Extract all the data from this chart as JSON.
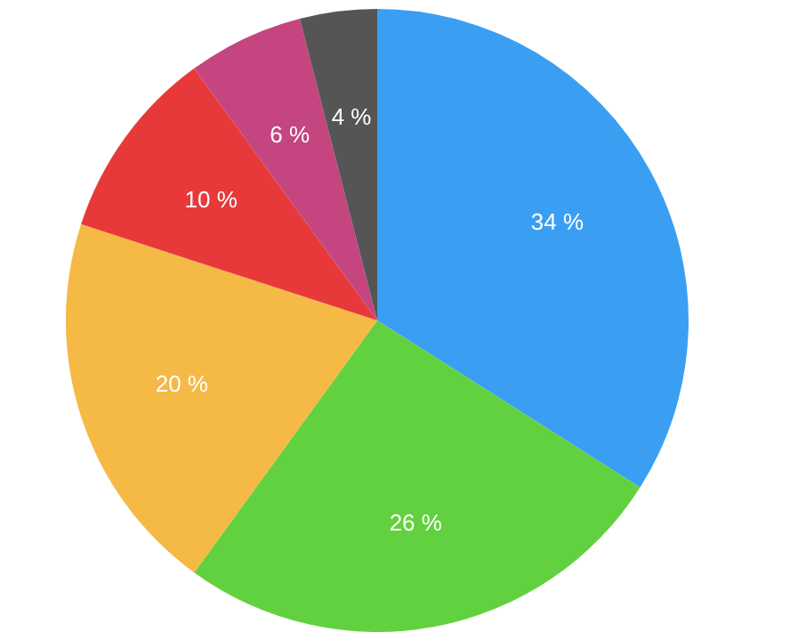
{
  "chart_data": {
    "type": "pie",
    "categories": [
      null,
      null,
      null,
      null,
      null,
      null
    ],
    "values": [
      34,
      26,
      20,
      10,
      6,
      4
    ],
    "colors": [
      "#3a9ff2",
      "#62d13f",
      "#f5b945",
      "#e8393a",
      "#c4457f",
      "#555555"
    ],
    "value_labels": [
      "34 %",
      "26 %",
      "20 %",
      "10 %",
      "6 %",
      "4 %"
    ]
  }
}
